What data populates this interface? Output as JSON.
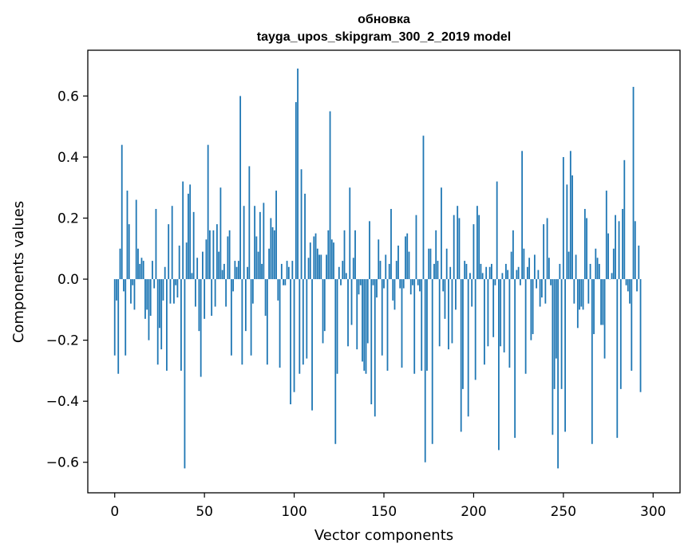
{
  "chart_data": {
    "type": "bar",
    "title": "обновка",
    "subtitle": "tayga_upos_skipgram_300_2_2019 model",
    "xlabel": "Vector components",
    "ylabel": "Components values",
    "xlim": [
      -15,
      315
    ],
    "ylim": [
      -0.7,
      0.75
    ],
    "xticks": [
      0,
      50,
      100,
      150,
      200,
      250,
      300
    ],
    "yticks": [
      -0.6,
      -0.4,
      -0.2,
      0.0,
      0.2,
      0.4,
      0.6
    ],
    "xtick_labels": [
      "0",
      "50",
      "100",
      "150",
      "200",
      "250",
      "300"
    ],
    "ytick_labels": [
      "−0.6",
      "−0.4",
      "−0.2",
      "0.0",
      "0.2",
      "0.4",
      "0.6"
    ],
    "grid": false,
    "bar_color": "#1f77b4",
    "values": [
      -0.25,
      -0.07,
      -0.31,
      0.1,
      0.44,
      -0.04,
      -0.25,
      0.29,
      0.18,
      -0.08,
      -0.02,
      -0.1,
      0.26,
      0.1,
      0.05,
      0.07,
      0.06,
      -0.13,
      -0.1,
      -0.2,
      -0.12,
      0.06,
      -0.03,
      0.23,
      -0.28,
      -0.16,
      -0.23,
      -0.07,
      0.04,
      -0.3,
      0.18,
      -0.08,
      0.24,
      -0.08,
      -0.02,
      -0.06,
      0.11,
      -0.3,
      0.32,
      -0.62,
      0.12,
      0.28,
      0.31,
      0.02,
      0.22,
      -0.09,
      0.07,
      -0.17,
      -0.32,
      0.09,
      -0.13,
      0.13,
      0.44,
      0.16,
      -0.12,
      0.16,
      -0.09,
      0.18,
      0.09,
      0.3,
      0.03,
      0.05,
      -0.09,
      0.14,
      0.16,
      -0.25,
      -0.04,
      0.06,
      0.04,
      0.06,
      0.6,
      -0.28,
      0.24,
      -0.17,
      0.04,
      0.37,
      -0.25,
      -0.08,
      0.24,
      0.14,
      0.09,
      0.22,
      0.05,
      0.25,
      -0.12,
      -0.28,
      0.1,
      0.2,
      0.17,
      0.16,
      0.29,
      -0.07,
      -0.29,
      0.05,
      -0.02,
      -0.02,
      0.06,
      0.04,
      -0.41,
      0.06,
      -0.37,
      0.58,
      0.69,
      -0.31,
      0.36,
      -0.28,
      0.28,
      -0.26,
      0.07,
      0.12,
      -0.43,
      0.14,
      0.15,
      0.1,
      0.08,
      0.08,
      -0.21,
      -0.17,
      0.08,
      0.16,
      0.55,
      0.13,
      0.12,
      -0.54,
      -0.31,
      0.04,
      -0.02,
      0.06,
      0.16,
      0.02,
      -0.22,
      0.3,
      -0.15,
      0.07,
      0.16,
      -0.23,
      -0.05,
      -0.02,
      -0.27,
      -0.3,
      -0.31,
      -0.21,
      0.19,
      -0.41,
      -0.02,
      -0.45,
      -0.06,
      0.13,
      0.06,
      -0.25,
      -0.03,
      0.08,
      -0.3,
      0.05,
      0.23,
      -0.07,
      -0.1,
      0.06,
      0.11,
      -0.03,
      -0.29,
      -0.03,
      0.14,
      0.15,
      0.09,
      -0.05,
      -0.02,
      -0.31,
      0.21,
      -0.02,
      -0.04,
      -0.3,
      0.47,
      -0.6,
      -0.3,
      0.1,
      0.1,
      -0.54,
      0.05,
      0.16,
      0.06,
      -0.22,
      0.3,
      -0.04,
      -0.13,
      0.1,
      -0.23,
      0.04,
      -0.21,
      0.21,
      -0.1,
      0.24,
      0.2,
      -0.5,
      -0.36,
      0.06,
      0.05,
      -0.45,
      0.02,
      -0.09,
      0.18,
      -0.33,
      0.24,
      0.21,
      0.05,
      0.02,
      -0.28,
      0.04,
      -0.22,
      0.04,
      0.05,
      -0.19,
      -0.02,
      0.32,
      -0.56,
      -0.22,
      0.02,
      -0.24,
      0.05,
      0.03,
      -0.29,
      0.09,
      0.16,
      -0.52,
      0.03,
      0.04,
      -0.02,
      0.42,
      0.1,
      -0.31,
      0.04,
      0.07,
      -0.2,
      -0.18,
      0.08,
      -0.03,
      0.03,
      -0.09,
      -0.06,
      0.18,
      -0.08,
      0.2,
      0.07,
      -0.02,
      -0.51,
      -0.36,
      -0.26,
      -0.62,
      0.05,
      -0.36,
      0.4,
      -0.5,
      0.31,
      0.09,
      0.42,
      0.34,
      -0.08,
      0.08,
      -0.16,
      -0.1,
      -0.09,
      -0.1,
      0.23,
      0.2,
      -0.08,
      0.05,
      -0.54,
      -0.18,
      0.1,
      0.07,
      0.05,
      -0.15,
      -0.15,
      -0.26,
      0.29,
      0.15,
      0.0,
      0.02,
      0.1,
      0.21,
      -0.52,
      0.19,
      -0.36,
      0.23,
      0.39,
      -0.02,
      -0.04,
      -0.08,
      -0.3,
      0.63,
      0.19,
      -0.04,
      0.11,
      -0.37
    ]
  }
}
